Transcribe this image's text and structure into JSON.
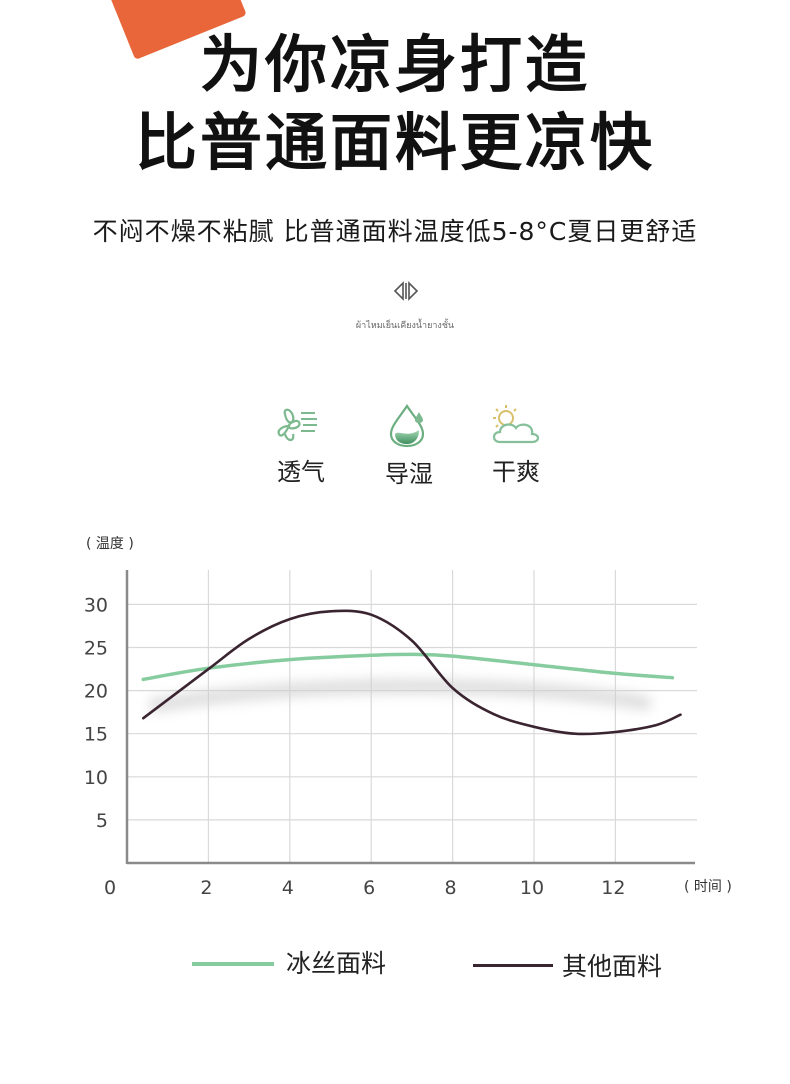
{
  "headline": {
    "line1": "为你凉身打造",
    "line2": "比普通面料更凉快"
  },
  "subtitle": "不闷不燥不粘腻 比普通面料温度低5-8°C夏日更舒适",
  "divider_icon": "diamond-arrows-icon",
  "thai_text": "ผ้าไหมเย็นเคียงน้ำยางชั้น",
  "features": [
    {
      "label": "透气",
      "icon": "breathable-fan-icon"
    },
    {
      "label": "导湿",
      "icon": "water-drop-icon"
    },
    {
      "label": "干爽",
      "icon": "sun-cloud-icon"
    }
  ],
  "colors": {
    "green": "#86cc9e",
    "dark": "#3a2430",
    "grid": "#d9d9d9",
    "axis": "#8a8a8a"
  },
  "chart_data": {
    "type": "line",
    "ylabel": "( 温度 )",
    "xlabel": "( 时间 )",
    "xlim": [
      0,
      14
    ],
    "ylim": [
      0,
      34
    ],
    "xticks": [
      0,
      2,
      4,
      6,
      8,
      10,
      12
    ],
    "yticks": [
      5,
      10,
      15,
      20,
      25,
      30
    ],
    "grid": true,
    "series": [
      {
        "name": "冰丝面料",
        "x": [
          0.4,
          2,
          4,
          6,
          7,
          8,
          10,
          12,
          13.4
        ],
        "y": [
          21.3,
          22.6,
          23.6,
          24.1,
          24.2,
          24.0,
          23.0,
          22.0,
          21.5
        ]
      },
      {
        "name": "其他面料",
        "x": [
          0.4,
          2,
          3,
          4,
          5,
          6,
          7,
          8,
          9,
          10,
          11,
          12,
          13,
          13.6
        ],
        "y": [
          16.8,
          22.5,
          26.0,
          28.3,
          29.2,
          28.8,
          25.8,
          20.3,
          17.3,
          15.8,
          15.0,
          15.2,
          16.0,
          17.2
        ]
      }
    ],
    "legend": "bottom"
  }
}
